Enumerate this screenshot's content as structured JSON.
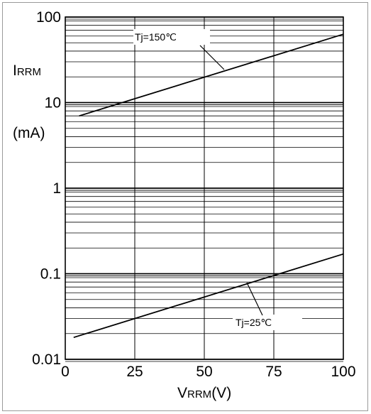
{
  "chart_data": {
    "type": "line",
    "x_scale": "linear",
    "y_scale": "log",
    "xlim": [
      0,
      100
    ],
    "ylim": [
      0.01,
      100
    ],
    "x_ticks": [
      "0",
      "25",
      "50",
      "75",
      "100"
    ],
    "y_ticks": [
      "0.01",
      "0.1",
      "1",
      "10",
      "100"
    ],
    "xlabel": {
      "main": "V",
      "sub": "RRM",
      "unit": "(V)"
    },
    "ylabel": {
      "main": "I",
      "sub": "RRM",
      "unit": "(mA)"
    },
    "grid": true,
    "series": [
      {
        "name": "Tj=150℃",
        "x": [
          5,
          100
        ],
        "y": [
          7,
          63
        ]
      },
      {
        "name": "Tj=25℃",
        "x": [
          3,
          100
        ],
        "y": [
          0.018,
          0.17
        ]
      }
    ]
  }
}
